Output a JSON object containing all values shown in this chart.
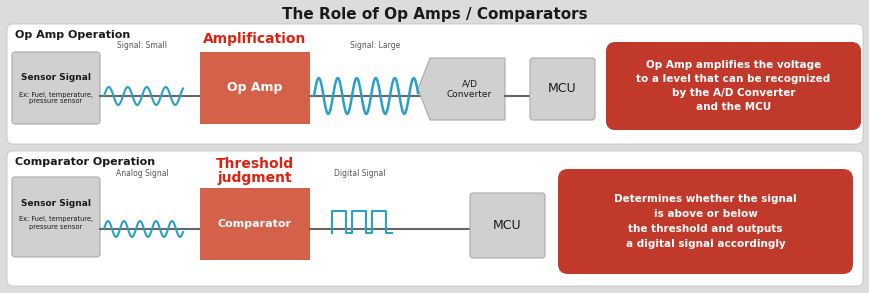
{
  "title": "The Role of Op Amps / Comparators",
  "bg_color": "#dcdcdc",
  "panel_bg": "#ffffff",
  "box_orange": "#d4614a",
  "box_gray_light": "#d0d0d0",
  "red_box_dark": "#c0392b",
  "red_box_light": "#e05040",
  "signal_blue": "#29a0c8",
  "text_dark": "#1a1a1a",
  "text_gray": "#555555",
  "text_red": "#dd2211",
  "section1_label": "Op Amp Operation",
  "section2_label": "Comparator Operation",
  "opamp_label": "Op Amp",
  "comparator_label": "Comparator",
  "sensor_label": "Sensor Signal",
  "sensor_sub": "Ex: Fuel, temperature,\npressure sensor",
  "signal_small": "Signal: Small",
  "amplification": "Amplification",
  "signal_large": "Signal: Large",
  "analog_signal": "Analog Signal",
  "threshold_line1": "Threshold",
  "threshold_line2": "judgment",
  "digital_signal": "Digital Signal",
  "ad_label": "A/D\nConverter",
  "mcu1_label": "MCU",
  "mcu2_label": "MCU",
  "red_text1": "Op Amp amplifies the voltage\nto a level that can be recognized\nby the A/D Converter\nand the MCU",
  "red_text2": "Determines whether the signal\nis above or below\nthe threshold and outputs\na digital signal accordingly",
  "figw": 8.7,
  "figh": 2.93,
  "dpi": 100
}
